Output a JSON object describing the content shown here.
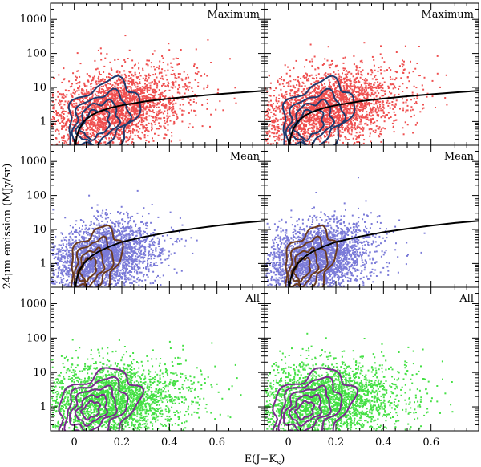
{
  "chart_data": {
    "type": "scatter",
    "layout": "3 rows x 2 columns, shared axes",
    "xlabel": "E(J−K",
    "xlabel_sub": "s",
    "xlabel_close": ")",
    "ylabel": "24μm emission (MJy/sr)",
    "yscale": "log",
    "xlim": [
      -0.1,
      0.8
    ],
    "ylim": [
      0.2,
      3000
    ],
    "x_ticks": [
      0,
      0.2,
      0.4,
      0.6
    ],
    "x_tick_labels": [
      "0",
      "0.2",
      "0.4",
      "0.6"
    ],
    "y_ticks": [
      1,
      10,
      100,
      1000
    ],
    "y_tick_labels": [
      "1",
      "10",
      "100",
      "1000"
    ],
    "rows": [
      {
        "label": "Maximum",
        "point_color": "#ef4f4f",
        "contour_color": "#1e3a6e",
        "fit_curve": true,
        "fit_curve_points": [
          [
            0.005,
            0.2
          ],
          [
            0.01,
            0.35
          ],
          [
            0.02,
            0.6
          ],
          [
            0.04,
            1.0
          ],
          [
            0.07,
            1.5
          ],
          [
            0.1,
            1.9
          ],
          [
            0.15,
            2.5
          ],
          [
            0.2,
            3.0
          ],
          [
            0.3,
            3.9
          ],
          [
            0.4,
            4.7
          ],
          [
            0.5,
            5.5
          ],
          [
            0.6,
            6.3
          ],
          [
            0.7,
            7.1
          ],
          [
            0.8,
            8.0
          ]
        ],
        "points_center": [
          0.16,
          2.5
        ],
        "points_spread": [
          0.15,
          0.55
        ],
        "contour_levels": [
          {
            "cx": 0.12,
            "cy": 1.4,
            "rx": 0.14,
            "ry": 0.55
          },
          {
            "cx": 0.11,
            "cy": 1.1,
            "rx": 0.11,
            "ry": 0.42
          },
          {
            "cx": 0.1,
            "cy": 0.95,
            "rx": 0.08,
            "ry": 0.32
          },
          {
            "cx": 0.09,
            "cy": 0.85,
            "rx": 0.055,
            "ry": 0.22
          }
        ]
      },
      {
        "label": "Mean",
        "point_color": "#7a7ad8",
        "contour_color": "#6b3a1e",
        "fit_curve": true,
        "fit_curve_points": [
          [
            0.005,
            0.2
          ],
          [
            0.01,
            0.35
          ],
          [
            0.02,
            0.6
          ],
          [
            0.04,
            1.0
          ],
          [
            0.07,
            1.6
          ],
          [
            0.1,
            2.2
          ],
          [
            0.15,
            3.2
          ],
          [
            0.2,
            4.3
          ],
          [
            0.3,
            6.2
          ],
          [
            0.4,
            8.3
          ],
          [
            0.5,
            10.5
          ],
          [
            0.6,
            13
          ],
          [
            0.7,
            15.5
          ],
          [
            0.8,
            18
          ]
        ],
        "points_center": [
          0.12,
          1.6
        ],
        "points_spread": [
          0.11,
          0.5
        ],
        "contour_levels": [
          {
            "cx": 0.09,
            "cy": 1.2,
            "rx": 0.1,
            "ry": 0.5
          },
          {
            "cx": 0.08,
            "cy": 0.95,
            "rx": 0.075,
            "ry": 0.38
          },
          {
            "cx": 0.07,
            "cy": 0.8,
            "rx": 0.05,
            "ry": 0.27
          },
          {
            "cx": 0.06,
            "cy": 0.7,
            "rx": 0.03,
            "ry": 0.17
          }
        ]
      },
      {
        "label": "All",
        "point_color": "#45e045",
        "contour_color": "#7a2a8e",
        "fit_curve": false,
        "fit_curve_points": [],
        "points_center": [
          0.15,
          1.6
        ],
        "points_spread": [
          0.16,
          0.55
        ],
        "contour_levels": [
          {
            "cx": 0.1,
            "cy": 1.0,
            "rx": 0.16,
            "ry": 0.55
          },
          {
            "cx": 0.09,
            "cy": 0.95,
            "rx": 0.12,
            "ry": 0.43
          },
          {
            "cx": 0.08,
            "cy": 0.9,
            "rx": 0.09,
            "ry": 0.32
          },
          {
            "cx": 0.075,
            "cy": 0.85,
            "rx": 0.06,
            "ry": 0.22
          },
          {
            "cx": 0.07,
            "cy": 0.8,
            "rx": 0.035,
            "ry": 0.13
          }
        ]
      }
    ]
  }
}
